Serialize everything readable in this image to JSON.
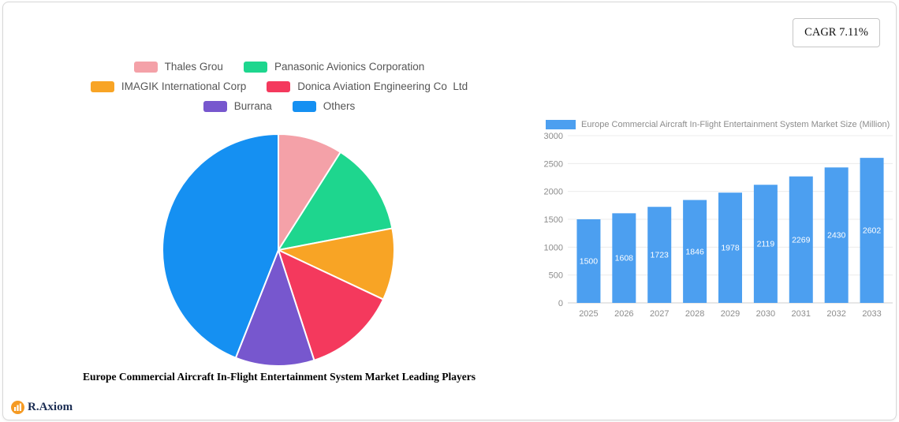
{
  "badges": {
    "cagr": "CAGR 7.11%"
  },
  "brand": {
    "name": "R.Axiom",
    "icon_color": "#F59A23"
  },
  "chart_data": [
    {
      "type": "pie",
      "title": "Europe Commercial Aircraft In-Flight Entertainment System Market Leading Players",
      "labels": [
        "Thales Grou",
        "Panasonic Avionics Corporation",
        "IMAGIK International Corp",
        "Donica Aviation Engineering Co  Ltd",
        "Burrana",
        "Others"
      ],
      "values": [
        9,
        13,
        10,
        13,
        11,
        44
      ],
      "colors": [
        "#F4A1A8",
        "#1ED68E",
        "#F8A425",
        "#F4395D",
        "#7757CE",
        "#1590F2"
      ],
      "legend_position": "top",
      "start_angle_deg": 0,
      "direction": "clockwise"
    },
    {
      "type": "bar",
      "legend": "Europe Commercial Aircraft In-Flight Entertainment System Market Size (Million)",
      "categories": [
        "2025",
        "2026",
        "2027",
        "2028",
        "2029",
        "2030",
        "2031",
        "2032",
        "2033"
      ],
      "values": [
        1500,
        1608,
        1723,
        1846,
        1978,
        2119,
        2269,
        2430,
        2602
      ],
      "ylim": [
        0,
        3000
      ],
      "yticks": [
        0,
        500,
        1000,
        1500,
        2000,
        2500,
        3000
      ],
      "bar_color": "#4C9FF0",
      "value_label_color": "#ffffff",
      "grid": true,
      "legend_position": "top"
    }
  ]
}
